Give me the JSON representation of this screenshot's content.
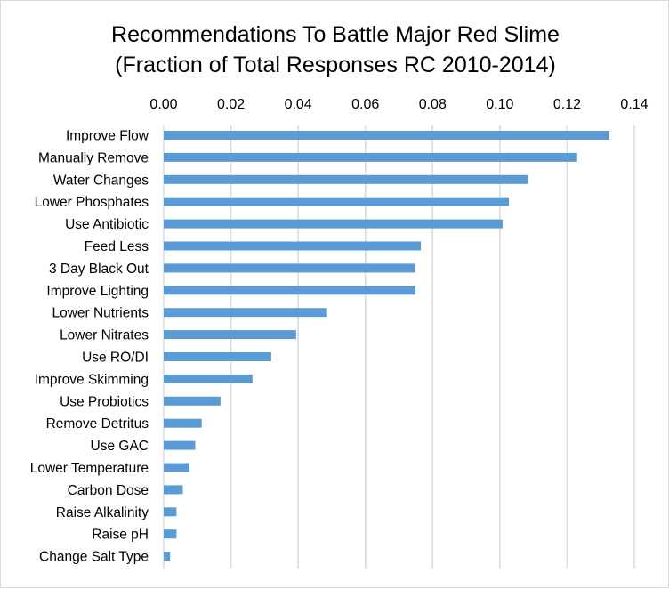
{
  "chart_data": {
    "type": "bar",
    "orientation": "horizontal",
    "title": "Recommendations To Battle Major Red Slime",
    "subtitle": "(Fraction of Total Responses  RC 2010-2014)",
    "xlabel": "",
    "ylabel": "",
    "xlim": [
      0,
      0.14
    ],
    "x_axis_position": "top",
    "x_ticks": [
      "0.00",
      "0.02",
      "0.04",
      "0.06",
      "0.08",
      "0.10",
      "0.12",
      "0.14"
    ],
    "grid": true,
    "legend": "none",
    "bar_color": "#5b9bd5",
    "categories": [
      "Improve Flow",
      "Manually Remove",
      "Water Changes",
      "Lower Phosphates",
      "Use Antibiotic",
      "Feed Less",
      "3 Day Black Out",
      "Improve Lighting",
      "Lower Nutrients",
      "Lower Nitrates",
      "Use RO/DI",
      "Improve Skimming",
      "Use Probiotics",
      "Remove Detritus",
      "Use GAC",
      "Lower Temperature",
      "Carbon Dose",
      "Raise Alkalinity",
      "Raise pH",
      "Change Salt Type"
    ],
    "values": [
      0.1325,
      0.123,
      0.1084,
      0.1027,
      0.1008,
      0.0765,
      0.0748,
      0.0748,
      0.0486,
      0.0394,
      0.032,
      0.0264,
      0.0169,
      0.0113,
      0.0094,
      0.0076,
      0.0057,
      0.0038,
      0.0038,
      0.0019
    ]
  }
}
